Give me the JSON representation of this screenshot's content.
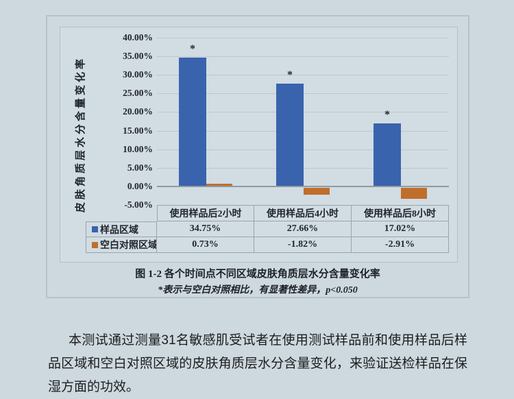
{
  "chart_data": {
    "type": "bar",
    "title": "图 1-2 各个时间点不同区域皮肤角质层水分含量变化率",
    "note": "*表示与空白对照相比，有显著性差异，p<0.050",
    "ylabel": "皮肤角质层水分含量变化率",
    "categories": [
      "使用样品后2小时",
      "使用样品后4小时",
      "使用样品后8小时"
    ],
    "series": [
      {
        "name": "样品区域",
        "color": "#3a63ae",
        "values": [
          34.75,
          27.66,
          17.02
        ],
        "labels": [
          "34.75%",
          "27.66%",
          "17.02%"
        ],
        "significant": [
          true,
          true,
          true
        ]
      },
      {
        "name": "空白对照区域",
        "color": "#c06e2b",
        "values": [
          0.73,
          -1.82,
          -2.91
        ],
        "labels": [
          "0.73%",
          "-1.82%",
          "-2.91%"
        ],
        "significant": [
          false,
          false,
          false
        ]
      }
    ],
    "y_axis": {
      "min": -5,
      "max": 40,
      "step": 5,
      "ticks": [
        "40.00%",
        "35.00%",
        "30.00%",
        "25.00%",
        "20.00%",
        "15.00%",
        "10.00%",
        "5.00%",
        "0.00%",
        "-5.00%"
      ]
    },
    "significance_marker": "*",
    "legend_position": "table-left",
    "grid": true
  },
  "footer": {
    "paragraph": "本测试通过测量31名敏感肌受试者在使用测试样品前和使用样品后样品区域和空白对照区域的皮肤角质层水分含量变化，来验证送检样品在保湿方面的功效。"
  },
  "colors": {
    "page_background": "#cdd8df",
    "chart_background": "#d2dce3",
    "box_border": "#b6c1c8",
    "table_border": "#98a4ac",
    "gridline": "#bcc7cd",
    "zero_axis": "#8e9aa3",
    "sample_series": "#3a63ae",
    "control_series": "#c06e2b",
    "text": "#20262b"
  }
}
